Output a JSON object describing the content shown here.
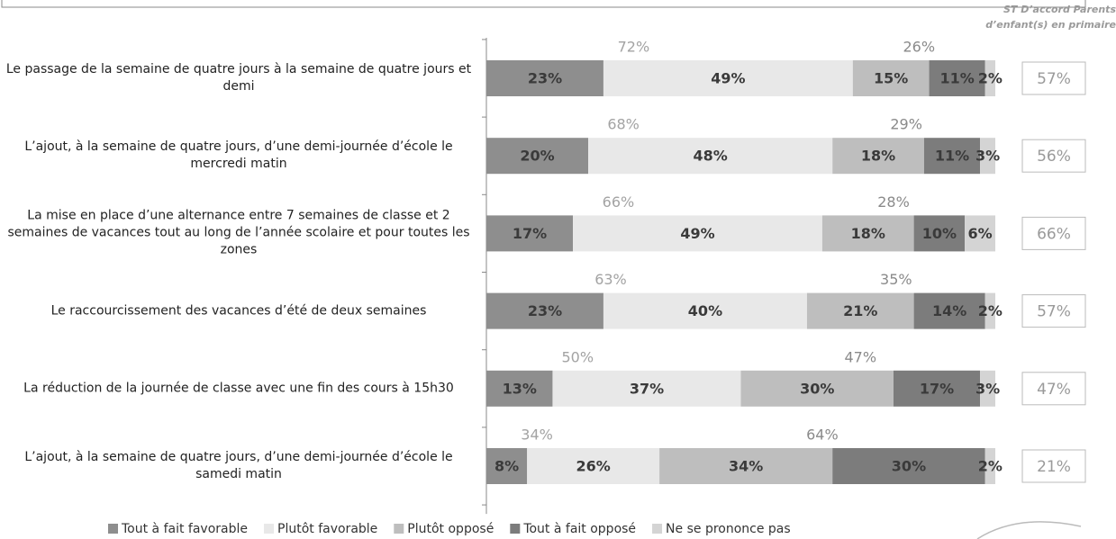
{
  "chart_data": {
    "type": "stacked-bar-horizontal",
    "categories": [
      "Le passage de la semaine de quatre jours à la semaine de quatre jours et demi",
      "L’ajout, à la semaine de quatre jours, d’une demi-journée d’école le mercredi matin",
      "La mise en place d’une alternance entre 7 semaines de classe et 2 semaines de vacances tout au long de l’année scolaire et pour toutes les zones",
      "Le raccourcissement des vacances d’été de deux semaines",
      "La réduction de la journée de classe avec une fin des cours à 15h30",
      "L’ajout, à la semaine de quatre jours, d’une demi-journée d’école le samedi matin"
    ],
    "xlim": [
      0,
      100
    ],
    "series": [
      {
        "name": "Tout à fait favorable",
        "color": "#8e8e8e",
        "values": [
          23,
          20,
          17,
          23,
          13,
          8
        ],
        "value_labels": [
          "23%",
          "20%",
          "17%",
          "23%",
          "13%",
          "8%"
        ]
      },
      {
        "name": "Plutôt favorable",
        "color": "#e8e8e8",
        "values": [
          49,
          48,
          49,
          40,
          37,
          26
        ],
        "value_labels": [
          "49%",
          "48%",
          "49%",
          "40%",
          "37%",
          "26%"
        ]
      },
      {
        "name": "Plutôt opposé",
        "color": "#bebebe",
        "values": [
          15,
          18,
          18,
          21,
          30,
          34
        ],
        "value_labels": [
          "15%",
          "18%",
          "18%",
          "21%",
          "30%",
          "34%"
        ]
      },
      {
        "name": "Tout à fait opposé",
        "color": "#7c7c7c",
        "values": [
          11,
          11,
          10,
          14,
          17,
          30
        ],
        "value_labels": [
          "11%",
          "11%",
          "10%",
          "14%",
          "17%",
          "30%"
        ]
      },
      {
        "name": "Ne se prononce pas",
        "color": "#d4d4d4",
        "values": [
          2,
          3,
          6,
          2,
          3,
          2
        ],
        "value_labels": [
          "2%",
          "3%",
          "6%",
          "2%",
          "3%",
          "2%"
        ]
      }
    ],
    "total_favorable": {
      "color": "#a3a3a3",
      "values": [
        72,
        68,
        66,
        63,
        50,
        34
      ],
      "value_labels": [
        "72%",
        "68%",
        "66%",
        "63%",
        "50%",
        "34%"
      ]
    },
    "total_opposed": {
      "color": "#8a8a8a",
      "values": [
        26,
        29,
        28,
        35,
        47,
        64
      ],
      "value_labels": [
        "26%",
        "29%",
        "28%",
        "35%",
        "47%",
        "64%"
      ]
    },
    "side_column": {
      "title": "ST D’accord Parents d’enfant(s) en primaire",
      "values": [
        57,
        56,
        66,
        57,
        47,
        21
      ],
      "value_labels": [
        "57%",
        "56%",
        "66%",
        "57%",
        "47%",
        "21%"
      ]
    }
  }
}
